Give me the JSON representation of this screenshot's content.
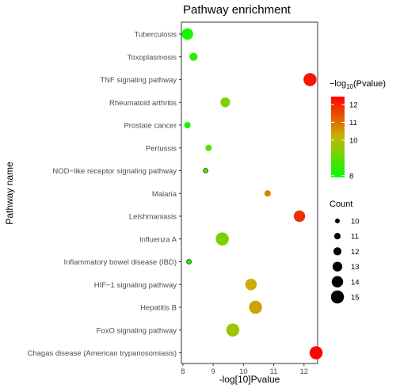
{
  "chart_data": {
    "type": "scatter",
    "title": "Pathway enrichment",
    "xlabel": "-log[10]Pvalue",
    "ylabel": "Pathway name",
    "xlim": [
      7.95,
      12.45
    ],
    "xticks": [
      8,
      9,
      10,
      11,
      12
    ],
    "grid": false,
    "categories": [
      "Tuberculosis",
      "Toxoplasmosis",
      "TNF signaling pathway",
      "Rheumatoid arthritis",
      "Prostate cancer",
      "Pertussis",
      "NOD−like receptor signaling pathway",
      "Malaria",
      "Leishmaniasis",
      "Influenza A",
      "Inflammatory bowel disease (IBD)",
      "HIF−1 signaling pathway",
      "Hepatitis B",
      "FoxO signaling pathway",
      "Chagas disease (American trypanosomiasis)"
    ],
    "points": [
      {
        "category": "Tuberculosis",
        "x": 8.15,
        "count": 14
      },
      {
        "category": "Toxoplasmosis",
        "x": 8.35,
        "count": 12
      },
      {
        "category": "TNF signaling pathway",
        "x": 12.2,
        "count": 15
      },
      {
        "category": "Rheumatoid arthritis",
        "x": 9.4,
        "count": 13
      },
      {
        "category": "Prostate cancer",
        "x": 8.15,
        "count": 11
      },
      {
        "category": "Pertussis",
        "x": 8.85,
        "count": 11
      },
      {
        "category": "NOD−like receptor signaling pathway",
        "x": 8.75,
        "count": 10
      },
      {
        "category": "Malaria",
        "x": 10.8,
        "count": 11
      },
      {
        "category": "Leishmaniasis",
        "x": 11.85,
        "count": 14
      },
      {
        "category": "Influenza A",
        "x": 9.3,
        "count": 15
      },
      {
        "category": "Inflammatory bowel disease (IBD)",
        "x": 8.2,
        "count": 10
      },
      {
        "category": "HIF−1 signaling pathway",
        "x": 10.25,
        "count": 14
      },
      {
        "category": "Hepatitis B",
        "x": 10.4,
        "count": 15
      },
      {
        "category": "FoxO signaling pathway",
        "x": 9.65,
        "count": 15
      },
      {
        "category": "Chagas disease (American trypanosomiasis)",
        "x": 12.4,
        "count": 15
      }
    ],
    "color_legend": {
      "title_prefix": "−log",
      "title_sub": "10",
      "title_suffix": "(Pvalue)",
      "min": 7.9,
      "max": 12.45,
      "low_color": "#00ff00",
      "mid_color": "#c8b400",
      "high_color": "#ff0000",
      "ticks": [
        8,
        10,
        11,
        12
      ],
      "tick_labels": [
        "8",
        "10",
        "11",
        "12"
      ]
    },
    "size_legend": {
      "title": "Count",
      "values": [
        10,
        11,
        12,
        13,
        14,
        15
      ]
    },
    "legend_placement": "right"
  }
}
